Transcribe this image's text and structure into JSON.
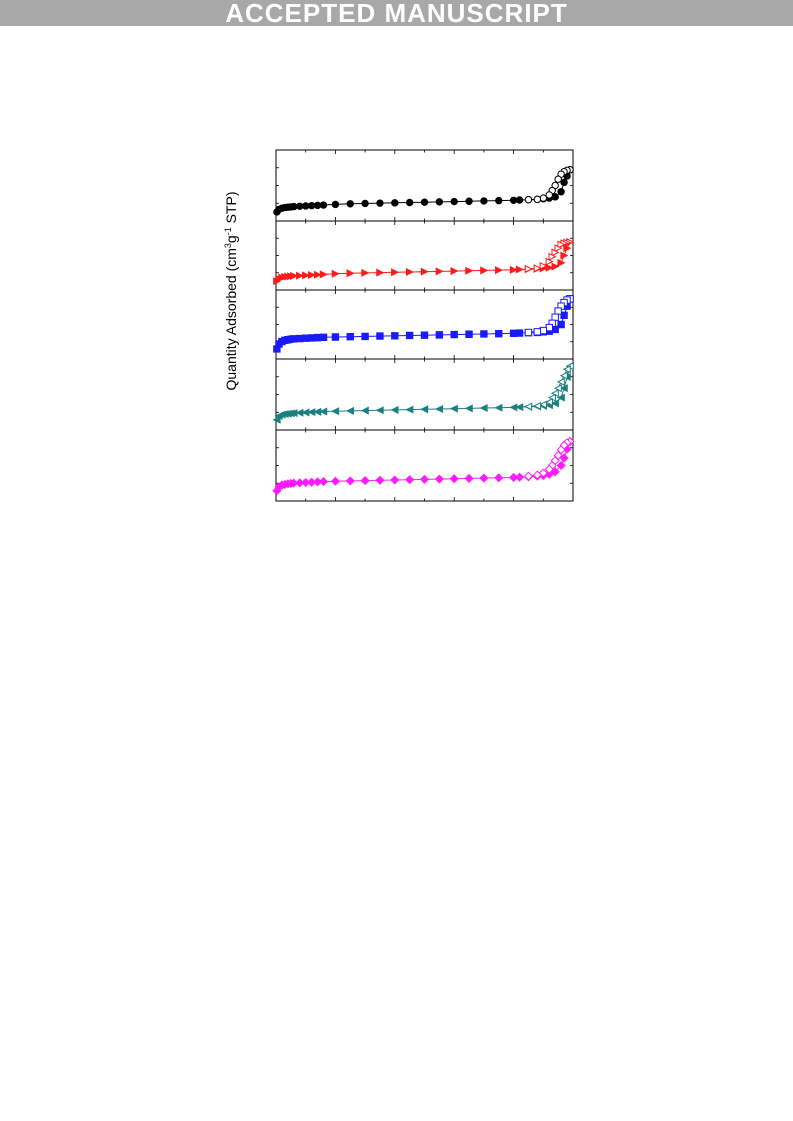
{
  "header": {
    "banner_text": "ACCEPTED MANUSCRIPT"
  },
  "chart_data": {
    "type": "line",
    "title": "",
    "xlabel": "",
    "ylabel_main": "Quantity Adsorbed (cm",
    "ylabel_sup1": "3",
    "ylabel_mid": "g",
    "ylabel_sup2": "-1",
    "ylabel_end": " STP)",
    "xlim": [
      0,
      1
    ],
    "x_minor_ticks": [
      0.1,
      0.2,
      0.3,
      0.4,
      0.5,
      0.6,
      0.7,
      0.8,
      0.9
    ],
    "tick_labels_visible": false,
    "legend": "none",
    "grid": false,
    "ylim": [
      0,
      100
    ],
    "panels": [
      {
        "color": "#000000",
        "marker": "circle",
        "adsorption": {
          "x": [
            0.003,
            0.01,
            0.02,
            0.03,
            0.04,
            0.05,
            0.06,
            0.08,
            0.1,
            0.12,
            0.14,
            0.16,
            0.2,
            0.25,
            0.3,
            0.35,
            0.4,
            0.45,
            0.5,
            0.55,
            0.6,
            0.65,
            0.7,
            0.75,
            0.8,
            0.82,
            0.85,
            0.88,
            0.9,
            0.92,
            0.94,
            0.96,
            0.97,
            0.98,
            0.99
          ],
          "y": [
            8,
            12,
            14,
            15,
            15.5,
            16,
            16.5,
            17,
            17.5,
            18,
            18.5,
            19,
            20,
            21,
            21.5,
            22,
            22.5,
            23,
            23.5,
            24,
            24.5,
            25,
            25.5,
            26,
            26.5,
            27,
            27.5,
            28,
            29,
            30,
            32,
            40,
            55,
            65,
            75
          ]
        },
        "desorption": {
          "x": [
            0.99,
            0.98,
            0.97,
            0.96,
            0.95,
            0.94,
            0.93,
            0.92,
            0.9,
            0.88,
            0.85
          ],
          "y": [
            75,
            74,
            72,
            68,
            60,
            50,
            42,
            35,
            30,
            28,
            27.5
          ]
        }
      },
      {
        "color": "#ff1a1a",
        "marker": "triangle-right",
        "adsorption": {
          "x": [
            0.003,
            0.01,
            0.02,
            0.03,
            0.04,
            0.05,
            0.06,
            0.08,
            0.1,
            0.12,
            0.14,
            0.16,
            0.2,
            0.25,
            0.3,
            0.35,
            0.4,
            0.45,
            0.5,
            0.55,
            0.6,
            0.65,
            0.7,
            0.75,
            0.8,
            0.82,
            0.85,
            0.88,
            0.9,
            0.92,
            0.94,
            0.96,
            0.97,
            0.98,
            0.99
          ],
          "y": [
            8,
            12,
            14,
            15,
            15.5,
            16,
            16.5,
            17,
            17.5,
            18,
            18.5,
            19,
            20,
            21,
            21.5,
            22,
            22.5,
            23,
            23.5,
            24,
            24.5,
            25,
            25.5,
            26,
            26.5,
            27,
            27.5,
            28,
            29,
            30,
            32,
            38,
            50,
            62,
            72
          ]
        },
        "desorption": {
          "x": [
            0.99,
            0.98,
            0.97,
            0.96,
            0.95,
            0.94,
            0.93,
            0.92,
            0.9,
            0.88,
            0.85
          ],
          "y": [
            72,
            71,
            70,
            68,
            62,
            55,
            48,
            40,
            33,
            29,
            28
          ]
        }
      },
      {
        "color": "#1a1aff",
        "marker": "square",
        "adsorption": {
          "x": [
            0.003,
            0.01,
            0.02,
            0.03,
            0.04,
            0.05,
            0.06,
            0.08,
            0.1,
            0.12,
            0.14,
            0.16,
            0.2,
            0.25,
            0.3,
            0.35,
            0.4,
            0.45,
            0.5,
            0.55,
            0.6,
            0.65,
            0.7,
            0.75,
            0.8,
            0.82,
            0.85,
            0.88,
            0.9,
            0.92,
            0.94,
            0.96,
            0.97,
            0.98,
            0.99
          ],
          "y": [
            10,
            18,
            22,
            24,
            25,
            26,
            26.5,
            27,
            27.5,
            28,
            28.5,
            29,
            29.5,
            30,
            30.5,
            31,
            31.5,
            32,
            32.5,
            33,
            33.5,
            34,
            34.5,
            35,
            35.5,
            36,
            36.5,
            37,
            38,
            39,
            42,
            50,
            65,
            80,
            92
          ]
        },
        "desorption": {
          "x": [
            0.99,
            0.98,
            0.97,
            0.96,
            0.95,
            0.94,
            0.93,
            0.92,
            0.9,
            0.88,
            0.85
          ],
          "y": [
            92,
            90,
            86,
            80,
            72,
            62,
            52,
            45,
            40,
            38,
            37
          ]
        }
      },
      {
        "color": "#1a8080",
        "marker": "triangle-left",
        "adsorption": {
          "x": [
            0.003,
            0.01,
            0.02,
            0.03,
            0.04,
            0.05,
            0.06,
            0.08,
            0.1,
            0.12,
            0.14,
            0.16,
            0.2,
            0.25,
            0.3,
            0.35,
            0.4,
            0.45,
            0.5,
            0.55,
            0.6,
            0.65,
            0.7,
            0.75,
            0.8,
            0.82,
            0.85,
            0.88,
            0.9,
            0.92,
            0.94,
            0.96,
            0.97,
            0.98,
            0.99
          ],
          "y": [
            10,
            16,
            18,
            19,
            19.5,
            20,
            20.5,
            21,
            21.5,
            22,
            22.5,
            23,
            23.5,
            24,
            24.5,
            25,
            25.5,
            26,
            26.5,
            27,
            27.5,
            28,
            28.5,
            29,
            29.5,
            30,
            30.5,
            31,
            32,
            33,
            36,
            45,
            60,
            78,
            95
          ]
        },
        "desorption": {
          "x": [
            0.99,
            0.98,
            0.97,
            0.96,
            0.95,
            0.94,
            0.93,
            0.92,
            0.9,
            0.88,
            0.85
          ],
          "y": [
            95,
            90,
            80,
            70,
            60,
            52,
            45,
            38,
            34,
            32,
            31
          ]
        }
      },
      {
        "color": "#ff1aff",
        "marker": "diamond",
        "adsorption": {
          "x": [
            0.003,
            0.01,
            0.02,
            0.03,
            0.04,
            0.05,
            0.06,
            0.08,
            0.1,
            0.12,
            0.14,
            0.16,
            0.2,
            0.25,
            0.3,
            0.35,
            0.4,
            0.45,
            0.5,
            0.55,
            0.6,
            0.65,
            0.7,
            0.75,
            0.8,
            0.82,
            0.85,
            0.88,
            0.9,
            0.92,
            0.94,
            0.96,
            0.97,
            0.98,
            0.99
          ],
          "y": [
            10,
            16,
            19,
            20,
            21,
            21.5,
            22,
            22.5,
            23,
            23.5,
            24,
            24.5,
            25,
            25.5,
            26,
            26.5,
            27,
            27.5,
            28,
            28.5,
            29,
            29.5,
            30,
            30.5,
            31,
            31.5,
            32,
            33,
            34,
            36,
            40,
            50,
            62,
            76,
            88
          ]
        },
        "desorption": {
          "x": [
            0.99,
            0.98,
            0.97,
            0.96,
            0.95,
            0.94,
            0.93,
            0.92,
            0.9,
            0.88,
            0.85
          ],
          "y": [
            88,
            86,
            82,
            75,
            66,
            58,
            50,
            44,
            38,
            35,
            33
          ]
        }
      }
    ]
  }
}
